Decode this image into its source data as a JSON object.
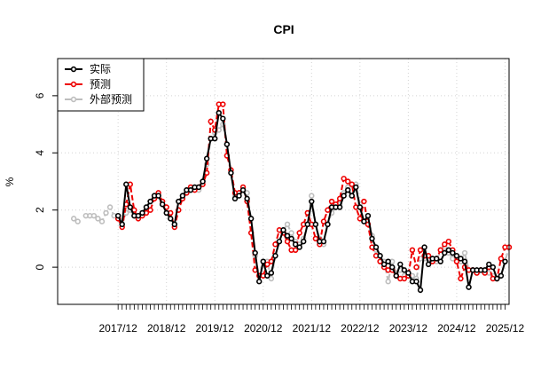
{
  "chart_data": {
    "type": "line",
    "title": "CPI",
    "xlabel": "",
    "ylabel": "%",
    "ylim": [
      -1.3,
      7.3
    ],
    "yticks": [
      0,
      2,
      4,
      6
    ],
    "xlim": [
      "2016-09",
      "2026-01"
    ],
    "xticks": [
      "2017/12",
      "2018/12",
      "2019/12",
      "2020/12",
      "2021/12",
      "2022/12",
      "2023/12",
      "2024/12",
      "2025/12"
    ],
    "x_start": "2017-01",
    "x_step": "1 month",
    "grid": true,
    "legend_position": "top-left",
    "colors": {
      "actual": "#000000",
      "forecast": "#ee0000",
      "external": "#bebebe"
    },
    "series": [
      {
        "name": "实际",
        "key": "actual",
        "values": [
          null,
          null,
          null,
          null,
          null,
          null,
          null,
          null,
          null,
          null,
          null,
          1.8,
          1.5,
          2.9,
          2.1,
          1.8,
          1.8,
          1.9,
          2.1,
          2.3,
          2.5,
          2.5,
          2.2,
          1.9,
          1.7,
          1.5,
          2.3,
          2.5,
          2.7,
          2.7,
          2.8,
          2.8,
          3.0,
          3.8,
          4.5,
          4.5,
          5.4,
          5.2,
          4.3,
          3.3,
          2.4,
          2.5,
          2.7,
          2.4,
          1.7,
          0.5,
          -0.5,
          0.2,
          -0.3,
          -0.2,
          0.4,
          0.9,
          1.3,
          1.1,
          1.0,
          0.8,
          0.7,
          0.9,
          1.5,
          2.3,
          1.5,
          0.9,
          0.9,
          1.5,
          2.1,
          2.1,
          2.1,
          2.5,
          2.7,
          2.5,
          2.8,
          2.1,
          1.6,
          1.8,
          1.0,
          0.7,
          0.4,
          0.1,
          0.2,
          0.0,
          -0.3,
          0.1,
          -0.1,
          -0.2,
          -0.5,
          -0.5,
          -0.8,
          0.7,
          0.1,
          0.3,
          0.3,
          0.2,
          0.5,
          0.6,
          0.5,
          0.4,
          0.3,
          0.2,
          -0.7,
          -0.1,
          -0.1,
          -0.1,
          -0.1,
          0.1,
          0.0,
          -0.4,
          -0.3,
          0.2
        ]
      },
      {
        "name": "预测",
        "key": "forecast",
        "values": [
          null,
          null,
          null,
          null,
          null,
          null,
          null,
          null,
          null,
          null,
          null,
          1.7,
          1.4,
          2.2,
          2.9,
          2.0,
          1.7,
          1.8,
          1.9,
          2.0,
          2.4,
          2.6,
          2.3,
          2.1,
          1.9,
          1.4,
          2.0,
          2.4,
          2.6,
          2.8,
          2.7,
          2.8,
          2.9,
          3.3,
          5.1,
          4.8,
          5.7,
          5.7,
          3.9,
          3.4,
          2.6,
          2.6,
          2.8,
          2.3,
          1.2,
          -0.1,
          -0.3,
          -0.3,
          0.1,
          0.2,
          0.8,
          1.3,
          1.2,
          0.9,
          0.6,
          0.6,
          1.2,
          1.5,
          1.9,
          1.5,
          1.0,
          0.8,
          1.6,
          2.0,
          2.3,
          2.2,
          2.4,
          3.1,
          3.0,
          2.9,
          2.1,
          1.7,
          2.3,
          1.5,
          0.7,
          0.4,
          0.2,
          0.0,
          -0.1,
          -0.1,
          -0.3,
          -0.4,
          -0.4,
          -0.3,
          0.6,
          0.0,
          0.6,
          0.4,
          0.4,
          0.2,
          0.3,
          0.6,
          0.8,
          0.9,
          0.6,
          0.2,
          -0.4,
          0.0,
          -0.1,
          -0.1,
          -0.2,
          -0.1,
          -0.2,
          0.0,
          -0.4,
          -0.4,
          0.3,
          0.7,
          0.7
        ]
      },
      {
        "name": "外部预测",
        "key": "external",
        "values": [
          1.7,
          1.6,
          null,
          1.8,
          1.8,
          1.8,
          1.7,
          1.6,
          1.9,
          2.1,
          1.8,
          1.7,
          1.5,
          1.9,
          2.0,
          1.8,
          1.8,
          1.9,
          2.1,
          2.3,
          2.5,
          2.5,
          2.2,
          1.9,
          1.7,
          1.5,
          2.3,
          2.5,
          2.7,
          2.7,
          2.8,
          2.7,
          3.0,
          3.6,
          4.5,
          4.7,
          4.8,
          5.0,
          4.3,
          3.3,
          2.5,
          2.6,
          2.7,
          2.6,
          1.7,
          0.4,
          -0.3,
          0.2,
          0.2,
          -0.4,
          0.4,
          0.9,
          1.3,
          1.5,
          1.2,
          0.9,
          0.8,
          1.0,
          1.5,
          2.5,
          1.5,
          1.0,
          0.8,
          1.5,
          1.9,
          2.1,
          2.2,
          2.6,
          2.8,
          2.5,
          2.9,
          2.2,
          1.6,
          1.8,
          1.1,
          0.6,
          0.4,
          0.2,
          -0.5,
          0.2,
          -0.2,
          -0.1,
          -0.3,
          -0.3,
          -0.3,
          -0.4,
          0.3,
          0.3,
          0.3,
          0.3,
          0.2,
          0.6,
          0.7,
          0.5,
          0.3,
          0.3,
          0.2,
          0.5,
          -0.1,
          -0.1,
          -0.2,
          -0.1,
          -0.1,
          -0.2,
          -0.3,
          -0.4,
          -0.3,
          0.2,
          0.7
        ]
      }
    ]
  }
}
